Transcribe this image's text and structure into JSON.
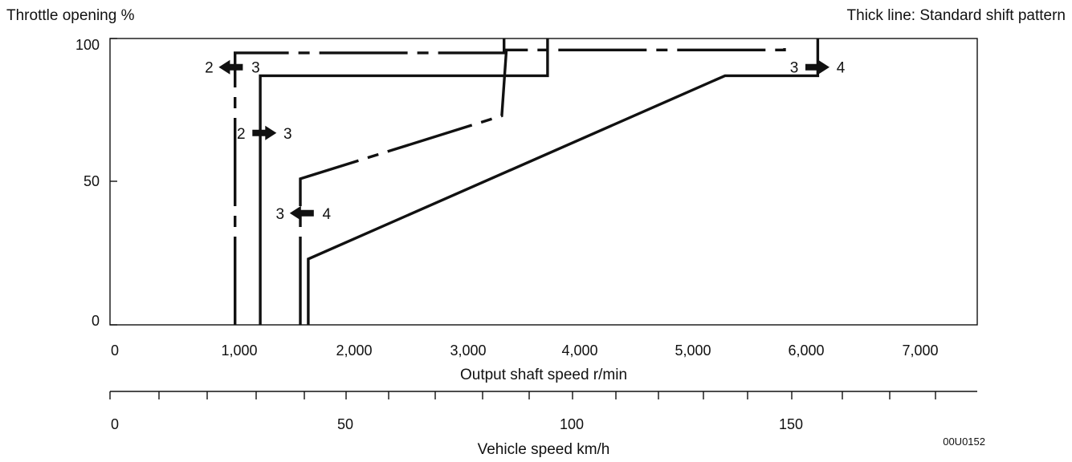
{
  "header": {
    "y_title": "Throttle opening %",
    "note": "Thick line: Standard shift pattern"
  },
  "figure_code": "00U0152",
  "chart_data": {
    "type": "line",
    "x_axis": {
      "label": "Output shaft speed r/min",
      "range": [
        0,
        7500
      ],
      "ticks": [
        0,
        1000,
        2000,
        3000,
        4000,
        5000,
        6000,
        7000
      ],
      "tick_labels": [
        "0",
        "1,000",
        "2,000",
        "3,000",
        "4,000",
        "5,000",
        "6,000",
        "7,000"
      ]
    },
    "y_axis": {
      "label": "Throttle opening %",
      "range": [
        0,
        100
      ],
      "ticks": [
        0,
        50,
        100
      ],
      "tick_labels": [
        "0",
        "50",
        "100"
      ]
    },
    "secondary_x_axis": {
      "label": "Vehicle speed km/h",
      "tick_values": [
        0,
        50,
        100,
        150
      ],
      "tick_labels": [
        "0",
        "50",
        "100",
        "150"
      ],
      "output_speed_at_ticks": [
        0,
        2000,
        3900,
        5850
      ]
    },
    "series": [
      {
        "shift": "2→3 downshift",
        "points": [
          [
            1050,
            0
          ],
          [
            1050,
            95
          ],
          [
            3400,
            95
          ],
          [
            3400,
            100
          ]
        ],
        "dashed": true
      },
      {
        "shift": "2→3 upshift",
        "points": [
          [
            1270,
            0
          ],
          [
            1270,
            87
          ],
          [
            3780,
            87
          ],
          [
            3780,
            100
          ]
        ],
        "dashed": false
      },
      {
        "shift": "3→4 downshift",
        "points": [
          [
            1620,
            0
          ],
          [
            1620,
            51
          ],
          [
            3380,
            73
          ],
          [
            3420,
            96
          ],
          [
            5850,
            96
          ],
          [
            5850,
            100
          ]
        ],
        "dashed": true
      },
      {
        "shift": "3→4 upshift",
        "points": [
          [
            1690,
            0
          ],
          [
            1690,
            23
          ],
          [
            5330,
            87
          ],
          [
            6140,
            87
          ],
          [
            6140,
            100
          ]
        ],
        "dashed": false
      }
    ],
    "annotations": [
      {
        "from": "2",
        "to": "3",
        "arrow": "left",
        "x": 1020,
        "y": 90
      },
      {
        "from": "2",
        "to": "3",
        "arrow": "right",
        "x": 1300,
        "y": 67
      },
      {
        "from": "3",
        "to": "4",
        "arrow": "left",
        "x": 1640,
        "y": 39
      },
      {
        "from": "3",
        "to": "4",
        "arrow": "right",
        "x": 6130,
        "y": 90
      }
    ],
    "grid": false,
    "legend": "none"
  }
}
